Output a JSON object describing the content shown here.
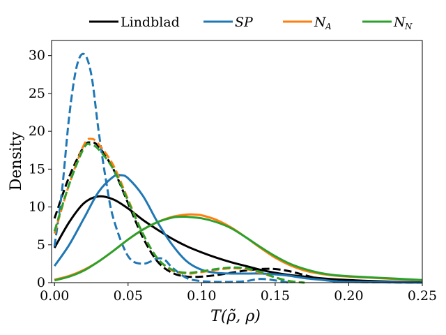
{
  "chart_data": {
    "type": "line",
    "title": "",
    "xlabel": "T(ρ̃, ρ)",
    "ylabel": "Density",
    "xlim": [
      -0.002,
      0.25
    ],
    "ylim": [
      0,
      32
    ],
    "x_ticks": [
      0.0,
      0.05,
      0.1,
      0.15,
      0.2,
      0.25
    ],
    "x_tick_labels": [
      "0.00",
      "0.05",
      "0.10",
      "0.15",
      "0.20",
      "0.25"
    ],
    "y_ticks": [
      0,
      5,
      10,
      15,
      20,
      25,
      30
    ],
    "y_tick_labels": [
      "0",
      "5",
      "10",
      "15",
      "20",
      "25",
      "30"
    ],
    "legend": {
      "placement": "top-center-outside",
      "entries": [
        {
          "label": "Lindblad",
          "color": "#000000"
        },
        {
          "label": "SP",
          "color": "#1f77b4"
        },
        {
          "label": "N",
          "sub": "A",
          "color": "#ff7f0e"
        },
        {
          "label": "N",
          "sub": "N",
          "color": "#2ca02c"
        }
      ]
    },
    "series": [
      {
        "name": "Lindblad",
        "style": "solid",
        "color": "#000000",
        "x": [
          0.0,
          0.01,
          0.02,
          0.03,
          0.04,
          0.05,
          0.06,
          0.07,
          0.08,
          0.09,
          0.1,
          0.11,
          0.12,
          0.13,
          0.14,
          0.15,
          0.16,
          0.17,
          0.18,
          0.19,
          0.2,
          0.21,
          0.22,
          0.23,
          0.24,
          0.25
        ],
        "y": [
          4.6,
          8.0,
          10.5,
          11.4,
          11.0,
          9.8,
          8.3,
          7.0,
          5.8,
          4.8,
          4.0,
          3.3,
          2.7,
          2.2,
          1.7,
          1.3,
          1.0,
          0.8,
          0.6,
          0.45,
          0.35,
          0.25,
          0.18,
          0.12,
          0.08,
          0.05
        ]
      },
      {
        "name": "Lindblad",
        "style": "dashed",
        "color": "#000000",
        "x": [
          0.0,
          0.01,
          0.02,
          0.025,
          0.03,
          0.04,
          0.05,
          0.06,
          0.07,
          0.08,
          0.09,
          0.1,
          0.11,
          0.12,
          0.13,
          0.14,
          0.15,
          0.16,
          0.17,
          0.18,
          0.19,
          0.2,
          0.25
        ],
        "y": [
          8.5,
          14.0,
          18.0,
          18.5,
          18.0,
          15.0,
          10.5,
          6.0,
          2.8,
          1.3,
          0.8,
          0.8,
          1.0,
          1.3,
          1.6,
          1.8,
          1.8,
          1.5,
          1.0,
          0.5,
          0.2,
          0.1,
          0.0
        ]
      },
      {
        "name": "SP",
        "style": "solid",
        "color": "#1f77b4",
        "x": [
          0.0,
          0.01,
          0.02,
          0.03,
          0.04,
          0.045,
          0.05,
          0.06,
          0.07,
          0.08,
          0.09,
          0.1,
          0.11,
          0.12,
          0.13,
          0.14,
          0.15,
          0.16,
          0.17,
          0.18,
          0.19,
          0.2,
          0.25
        ],
        "y": [
          2.2,
          5.0,
          8.5,
          12.0,
          14.0,
          14.2,
          13.8,
          11.5,
          8.0,
          5.0,
          2.8,
          1.7,
          1.3,
          1.2,
          1.2,
          1.2,
          1.1,
          0.9,
          0.6,
          0.4,
          0.2,
          0.1,
          0.0
        ]
      },
      {
        "name": "SP",
        "style": "dashed",
        "color": "#1f77b4",
        "x": [
          0.0,
          0.005,
          0.01,
          0.015,
          0.02,
          0.025,
          0.03,
          0.035,
          0.04,
          0.05,
          0.06,
          0.07,
          0.075,
          0.08,
          0.09,
          0.1,
          0.11,
          0.12,
          0.13,
          0.14,
          0.15,
          0.16
        ],
        "y": [
          4.8,
          12.0,
          22.0,
          28.5,
          30.2,
          27.5,
          20.0,
          13.5,
          8.5,
          3.5,
          2.5,
          3.2,
          3.0,
          2.0,
          0.6,
          0.2,
          0.1,
          0.1,
          0.2,
          0.5,
          0.3,
          0.0
        ]
      },
      {
        "name": "N_A",
        "style": "solid",
        "color": "#ff7f0e",
        "x": [
          0.0,
          0.01,
          0.02,
          0.03,
          0.04,
          0.05,
          0.06,
          0.07,
          0.08,
          0.09,
          0.095,
          0.1,
          0.11,
          0.12,
          0.13,
          0.14,
          0.15,
          0.16,
          0.17,
          0.18,
          0.19,
          0.2,
          0.21,
          0.22,
          0.23,
          0.24,
          0.25
        ],
        "y": [
          0.4,
          0.9,
          1.7,
          2.8,
          4.2,
          5.7,
          7.0,
          8.0,
          8.7,
          9.0,
          9.0,
          8.9,
          8.3,
          7.3,
          6.0,
          4.6,
          3.3,
          2.3,
          1.6,
          1.2,
          0.95,
          0.8,
          0.7,
          0.6,
          0.5,
          0.4,
          0.3
        ]
      },
      {
        "name": "N_A",
        "style": "dashed",
        "color": "#ff7f0e",
        "x": [
          0.0,
          0.01,
          0.02,
          0.025,
          0.03,
          0.04,
          0.05,
          0.06,
          0.07,
          0.08,
          0.09,
          0.1,
          0.11,
          0.12,
          0.13,
          0.14,
          0.15,
          0.16,
          0.17
        ],
        "y": [
          6.5,
          13.0,
          18.2,
          19.0,
          18.3,
          15.5,
          11.0,
          6.5,
          3.2,
          1.6,
          1.2,
          1.4,
          1.7,
          1.9,
          1.8,
          1.3,
          0.7,
          0.2,
          0.0
        ]
      },
      {
        "name": "N_N",
        "style": "solid",
        "color": "#2ca02c",
        "x": [
          0.0,
          0.01,
          0.02,
          0.03,
          0.04,
          0.05,
          0.06,
          0.07,
          0.08,
          0.085,
          0.09,
          0.1,
          0.11,
          0.12,
          0.13,
          0.14,
          0.15,
          0.16,
          0.17,
          0.18,
          0.19,
          0.2,
          0.21,
          0.22,
          0.23,
          0.24,
          0.25
        ],
        "y": [
          0.3,
          0.8,
          1.6,
          2.8,
          4.2,
          5.7,
          7.0,
          8.0,
          8.6,
          8.7,
          8.7,
          8.5,
          8.0,
          7.2,
          6.0,
          4.7,
          3.5,
          2.5,
          1.8,
          1.3,
          1.0,
          0.85,
          0.75,
          0.65,
          0.55,
          0.45,
          0.35
        ]
      },
      {
        "name": "N_N",
        "style": "dashed",
        "color": "#2ca02c",
        "x": [
          0.0,
          0.01,
          0.02,
          0.025,
          0.03,
          0.04,
          0.05,
          0.06,
          0.07,
          0.08,
          0.09,
          0.1,
          0.11,
          0.12,
          0.13,
          0.14,
          0.15,
          0.16,
          0.17
        ],
        "y": [
          6.8,
          13.0,
          17.8,
          18.2,
          17.6,
          15.0,
          10.8,
          6.5,
          3.2,
          1.7,
          1.3,
          1.5,
          1.8,
          2.0,
          1.9,
          1.4,
          0.7,
          0.2,
          0.0
        ]
      }
    ]
  }
}
